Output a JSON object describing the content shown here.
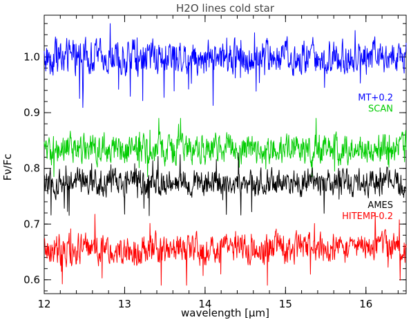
{
  "chart_data": {
    "type": "line",
    "title": "H2O lines cold star",
    "xlabel": "wavelength [μm]",
    "ylabel": "Fν/Fc",
    "xlim": [
      12.0,
      16.5
    ],
    "ylim": [
      0.575,
      1.075
    ],
    "x_ticks": [
      "12",
      "13",
      "14",
      "15",
      "16"
    ],
    "y_ticks": [
      "0.6",
      "0.7",
      "0.8",
      "0.9",
      "1.0"
    ],
    "grid": false,
    "legend_placement": "right",
    "series": [
      {
        "name": "MT+0.2",
        "color": "#0000ff",
        "baseline": 1.0,
        "amplitude": 0.028,
        "min": 0.905,
        "max": 1.06
      },
      {
        "name": "SCAN",
        "color": "#00cc00",
        "baseline": 0.835,
        "amplitude": 0.025,
        "min": 0.785,
        "max": 0.89
      },
      {
        "name": "AMES",
        "color": "#000000",
        "baseline": 0.775,
        "amplitude": 0.022,
        "min": 0.71,
        "max": 0.835
      },
      {
        "name": "HITEMP-0.2",
        "color": "#ff0000",
        "baseline": 0.655,
        "amplitude": 0.025,
        "min": 0.59,
        "max": 0.725
      }
    ],
    "legend_rows": [
      {
        "label": "MT+0.2",
        "color": "#0000ff"
      },
      {
        "label": "SCAN",
        "color": "#00cc00"
      },
      {
        "label": "AMES",
        "color": "#000000"
      },
      {
        "label": "HITEMP-0.2",
        "color": "#ff0000"
      }
    ]
  }
}
